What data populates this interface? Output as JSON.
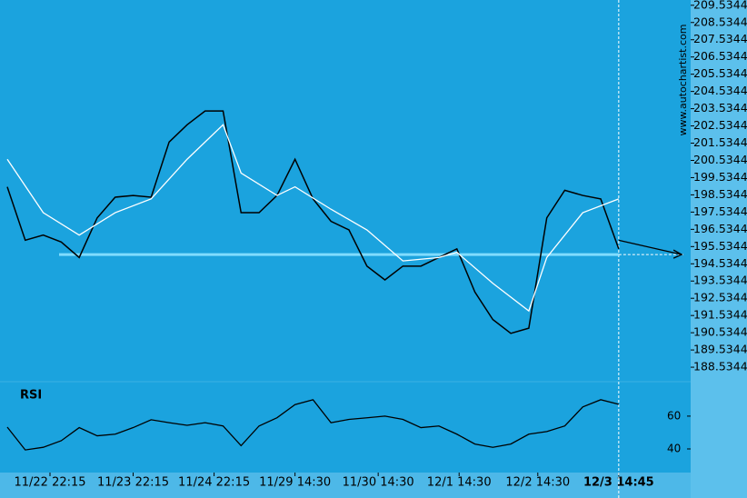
{
  "chart_data": {
    "type": "line",
    "watermark": "www.autochartist.com",
    "xlim": [
      0,
      152
    ],
    "xticks": [
      {
        "value": 9.5,
        "label": "11/22 22:15"
      },
      {
        "value": 28,
        "label": "11/23 22:15"
      },
      {
        "value": 46,
        "label": "11/24 22:15"
      },
      {
        "value": 64,
        "label": "11/29 14:30"
      },
      {
        "value": 82.5,
        "label": "11/30 14:30"
      },
      {
        "value": 100.5,
        "label": "12/1 14:30"
      },
      {
        "value": 118,
        "label": "12/2 14:30"
      },
      {
        "value": 136,
        "label": "12/3 14:45"
      }
    ],
    "highlight_xtick": 7,
    "ylim": [
      187.8,
      209.84
    ],
    "yticks": [
      188.5344,
      189.5344,
      190.5344,
      191.5344,
      192.5344,
      193.5344,
      194.5344,
      195.5344,
      196.5344,
      197.5344,
      198.5344,
      199.5344,
      200.5344,
      201.5344,
      202.5344,
      203.5344,
      204.5344,
      205.5344,
      206.5344,
      207.5344,
      208.5344,
      209.5344
    ],
    "series": [
      {
        "color": "#000000",
        "x": [
          0,
          4,
          8,
          12,
          16,
          20,
          24,
          28,
          32,
          36,
          40,
          44,
          48,
          52,
          56,
          60,
          64,
          68,
          72,
          76,
          80,
          84,
          88,
          92,
          96,
          100,
          104,
          108,
          112,
          116,
          120,
          124,
          128,
          132,
          136
        ],
        "values": [
          199.0,
          195.9,
          196.2,
          195.8,
          194.9,
          197.2,
          198.4,
          198.5,
          198.4,
          201.6,
          202.6,
          203.4,
          203.4,
          197.5,
          197.5,
          198.5,
          200.6,
          198.3,
          197.0,
          196.5,
          194.4,
          193.6,
          194.4,
          194.4,
          194.9,
          195.4,
          192.9,
          191.3,
          190.5,
          190.8,
          197.2,
          198.8,
          198.5,
          198.3,
          195.4
        ]
      },
      {
        "color": "#ffffff",
        "x": [
          0,
          8,
          16,
          24,
          32,
          40,
          48,
          52,
          60,
          64,
          72,
          80,
          88,
          96,
          100,
          108,
          116,
          120,
          128,
          136
        ],
        "values": [
          200.6,
          197.5,
          196.2,
          197.5,
          198.3,
          200.6,
          202.6,
          199.8,
          198.5,
          199.0,
          197.7,
          196.5,
          194.7,
          194.9,
          195.2,
          193.4,
          191.8,
          194.9,
          197.5,
          198.3
        ]
      }
    ],
    "support": 195.07,
    "forecast": {
      "x": [
        136,
        150
      ],
      "values": [
        195.9,
        195.07
      ]
    },
    "rsi": {
      "title": "RSI",
      "ylim": [
        25.6,
        81
      ],
      "yticks": [
        40,
        60
      ],
      "color": "#000000",
      "x": [
        0,
        4,
        8,
        12,
        16,
        20,
        24,
        28,
        32,
        36,
        40,
        44,
        48,
        52,
        56,
        60,
        64,
        68,
        72,
        76,
        80,
        84,
        88,
        92,
        96,
        100,
        104,
        108,
        112,
        116,
        120,
        124,
        128,
        132,
        136
      ],
      "values": [
        53.3,
        39.4,
        41,
        45,
        53,
        48,
        49,
        53,
        57.8,
        56,
        54.4,
        56,
        54,
        42,
        54,
        59,
        67,
        70,
        56,
        58,
        59,
        60,
        58,
        53,
        54,
        49,
        43,
        41,
        43,
        49,
        50.6,
        54,
        65.6,
        70,
        67.2
      ]
    }
  }
}
